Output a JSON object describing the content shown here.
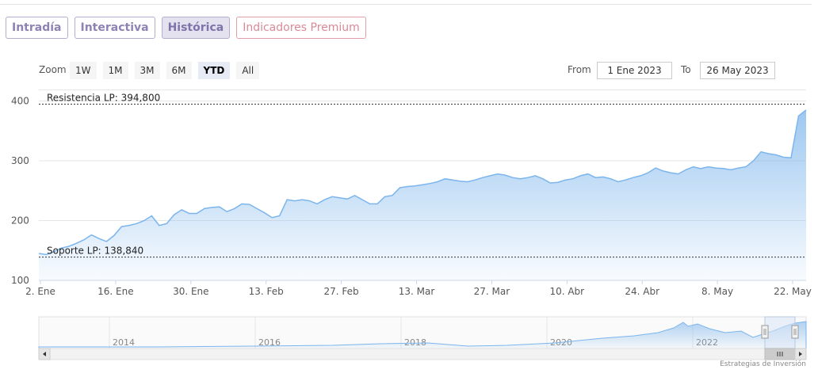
{
  "tabs": [
    {
      "label": "Intradía",
      "active": false
    },
    {
      "label": "Interactiva",
      "active": false
    },
    {
      "label": "Histórica",
      "active": true
    },
    {
      "label": "Indicadores Premium",
      "active": false
    }
  ],
  "range_selector": {
    "zoom_label": "Zoom",
    "buttons": [
      {
        "label": "1W",
        "active": false
      },
      {
        "label": "1M",
        "active": false
      },
      {
        "label": "3M",
        "active": false
      },
      {
        "label": "6M",
        "active": false
      },
      {
        "label": "YTD",
        "active": true
      },
      {
        "label": "All",
        "active": false
      }
    ],
    "from_label": "From",
    "from_value": "1 Ene 2023",
    "to_label": "To",
    "to_value": "26 May 2023"
  },
  "navigator": {
    "year_labels": [
      "2014",
      "2016",
      "2018",
      "2020",
      "2022"
    ]
  },
  "credits": "Estrategias de Inversión",
  "colors": {
    "series_line": "#7cb5ec",
    "tab_border": "#b6acd0",
    "tab_text": "#8e83b5",
    "premium_text": "#d98a96"
  },
  "chart_data": {
    "type": "area",
    "xlabels": [
      "2. Ene",
      "16. Ene",
      "30. Ene",
      "13. Feb",
      "27. Feb",
      "13. Mar",
      "27. Mar",
      "10. Abr",
      "24. Abr",
      "8. May",
      "22. May"
    ],
    "yticks": [
      100,
      200,
      300,
      400
    ],
    "ylim": [
      100,
      410
    ],
    "plot_lines": [
      {
        "label": "Resistencia LP: 394,800",
        "value": 394.8
      },
      {
        "label": "Soporte LP: 138,840",
        "value": 138.84
      }
    ],
    "series": [
      {
        "values": [
          145,
          143,
          148,
          154,
          157,
          162,
          168,
          176,
          170,
          165,
          175,
          190,
          192,
          195,
          200,
          208,
          192,
          195,
          210,
          218,
          212,
          212,
          220,
          222,
          223,
          215,
          220,
          228,
          227,
          220,
          213,
          205,
          208,
          235,
          233,
          235,
          233,
          228,
          235,
          240,
          238,
          236,
          242,
          235,
          228,
          228,
          240,
          242,
          255,
          257,
          258,
          260,
          262,
          265,
          270,
          268,
          266,
          265,
          268,
          272,
          275,
          278,
          276,
          272,
          270,
          272,
          275,
          270,
          263,
          264,
          268,
          270,
          275,
          278,
          272,
          273,
          270,
          265,
          268,
          272,
          275,
          280,
          288,
          283,
          280,
          278,
          285,
          290,
          287,
          290,
          288,
          287,
          285,
          288,
          290,
          300,
          315,
          312,
          310,
          306,
          305,
          375,
          385
        ]
      }
    ]
  }
}
